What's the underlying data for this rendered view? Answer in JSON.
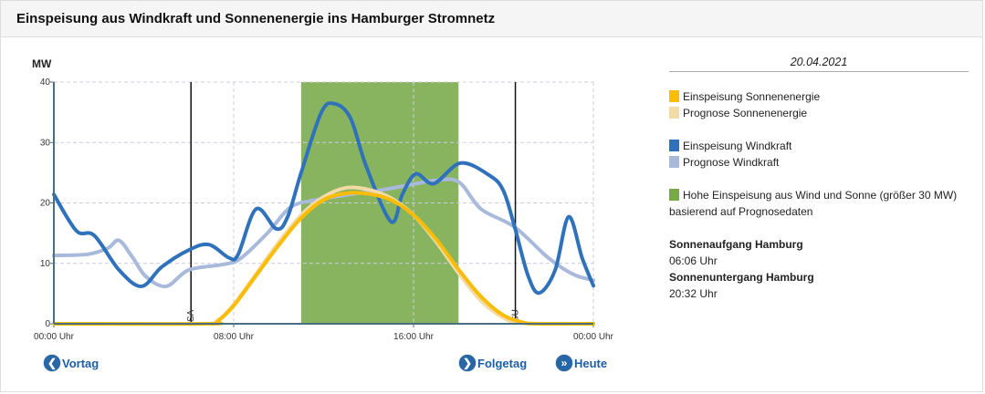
{
  "header": {
    "title": "Einspeisung aus Windkraft und Sonnenenergie ins Hamburger Stromnetz"
  },
  "nav": {
    "prev": "Vortag",
    "next": "Folgetag",
    "today": "Heute"
  },
  "legend": {
    "date": "20.04.2021",
    "items": [
      {
        "label": "Einspeisung Sonnenenergie",
        "color": "#fbbc05"
      },
      {
        "label": "Prognose Sonnenenergie",
        "color": "#f3dba8"
      },
      {
        "label": "Einspeisung Windkraft",
        "color": "#2f72bb"
      },
      {
        "label": "Prognose Windkraft",
        "color": "#a8b9dc"
      },
      {
        "label": "Hohe Einspeisung aus Wind und Sonne (größer 30 MW) basierend auf Prognosedaten",
        "color": "#77a944"
      }
    ],
    "sunrise_label": "Sonnenaufgang Hamburg",
    "sunrise": "06:06 Uhr",
    "sunset_label": "Sonnenuntergang Hamburg",
    "sunset": "20:32 Uhr"
  },
  "chart_data": {
    "type": "line",
    "ylabel": "MW",
    "ylim": [
      0,
      40
    ],
    "yticks": [
      0,
      10,
      20,
      30,
      40
    ],
    "xlim": [
      0,
      24
    ],
    "xticks": [
      {
        "h": 0,
        "label": "00:00 Uhr"
      },
      {
        "h": 8,
        "label": "08:00 Uhr"
      },
      {
        "h": 16,
        "label": "16:00 Uhr"
      },
      {
        "h": 24,
        "label": "00:00 Uhr"
      }
    ],
    "grid": true,
    "high_band": {
      "from": 11.0,
      "to": 18.0,
      "color": "#88b45f"
    },
    "markers": [
      {
        "h": 6.1,
        "label": "SA"
      },
      {
        "h": 20.53,
        "label": "SU"
      }
    ],
    "series": [
      {
        "name": "Prognose Windkraft",
        "color": "#a8b9dc",
        "points": [
          [
            0,
            11.3
          ],
          [
            1.5,
            11.5
          ],
          [
            2.4,
            12.5
          ],
          [
            2.9,
            13.8
          ],
          [
            3.5,
            11
          ],
          [
            4.1,
            7.8
          ],
          [
            5,
            6.2
          ],
          [
            6,
            8.9
          ],
          [
            7.5,
            9.8
          ],
          [
            8.3,
            10.8
          ],
          [
            9.5,
            15
          ],
          [
            10.5,
            19.2
          ],
          [
            11.5,
            20.4
          ],
          [
            13,
            21.3
          ],
          [
            14.5,
            22.1
          ],
          [
            16,
            23.1
          ],
          [
            16.9,
            23.7
          ],
          [
            18,
            23.5
          ],
          [
            19,
            19
          ],
          [
            20.5,
            16
          ],
          [
            22,
            10.9
          ],
          [
            23.1,
            8.2
          ],
          [
            24,
            7.2
          ]
        ]
      },
      {
        "name": "Einspeisung Windkraft",
        "color": "#2f72bb",
        "points": [
          [
            0,
            21.4
          ],
          [
            1,
            15.4
          ],
          [
            1.8,
            14.6
          ],
          [
            2.9,
            8.9
          ],
          [
            3.9,
            6.2
          ],
          [
            4.8,
            9.4
          ],
          [
            6,
            12.2
          ],
          [
            6.9,
            13.1
          ],
          [
            7.8,
            10.9
          ],
          [
            8.2,
            11.5
          ],
          [
            9,
            19
          ],
          [
            9.9,
            15.7
          ],
          [
            10.4,
            17.7
          ],
          [
            11,
            25
          ],
          [
            11.9,
            35
          ],
          [
            12.5,
            36.4
          ],
          [
            13.2,
            34
          ],
          [
            13.9,
            26
          ],
          [
            15,
            16.9
          ],
          [
            15.5,
            21.4
          ],
          [
            16.1,
            24.8
          ],
          [
            16.9,
            23.2
          ],
          [
            18.1,
            26.6
          ],
          [
            19.4,
            24.5
          ],
          [
            20,
            22
          ],
          [
            20.5,
            16
          ],
          [
            21.1,
            7.9
          ],
          [
            21.6,
            5.1
          ],
          [
            22.3,
            8.9
          ],
          [
            22.9,
            17.7
          ],
          [
            23.5,
            10.9
          ],
          [
            24,
            6.3
          ]
        ]
      },
      {
        "name": "Prognose Sonnenenergie",
        "color": "#f3dba8",
        "points": [
          [
            0,
            0
          ],
          [
            6.5,
            0
          ],
          [
            7.2,
            0.3
          ],
          [
            8,
            3.2
          ],
          [
            9,
            8.3
          ],
          [
            10,
            13.5
          ],
          [
            11,
            18
          ],
          [
            12,
            21
          ],
          [
            13,
            22.5
          ],
          [
            14,
            22.2
          ],
          [
            15,
            20.8
          ],
          [
            16,
            18
          ],
          [
            17,
            13.6
          ],
          [
            18,
            8.4
          ],
          [
            19,
            3.8
          ],
          [
            20,
            1
          ],
          [
            20.9,
            0.1
          ],
          [
            24,
            0
          ]
        ]
      },
      {
        "name": "Einspeisung Sonnenenergie",
        "color": "#fbbc05",
        "points": [
          [
            0,
            0
          ],
          [
            6.8,
            0
          ],
          [
            7.3,
            0.5
          ],
          [
            8,
            3
          ],
          [
            9,
            8
          ],
          [
            10,
            13
          ],
          [
            11,
            17.5
          ],
          [
            12,
            20.5
          ],
          [
            13,
            21.6
          ],
          [
            14,
            21.5
          ],
          [
            15,
            20.5
          ],
          [
            16,
            18
          ],
          [
            17,
            14
          ],
          [
            18,
            9
          ],
          [
            19,
            4.5
          ],
          [
            20,
            1.4
          ],
          [
            20.9,
            0.2
          ],
          [
            21.5,
            0
          ],
          [
            24,
            0
          ]
        ]
      }
    ]
  }
}
